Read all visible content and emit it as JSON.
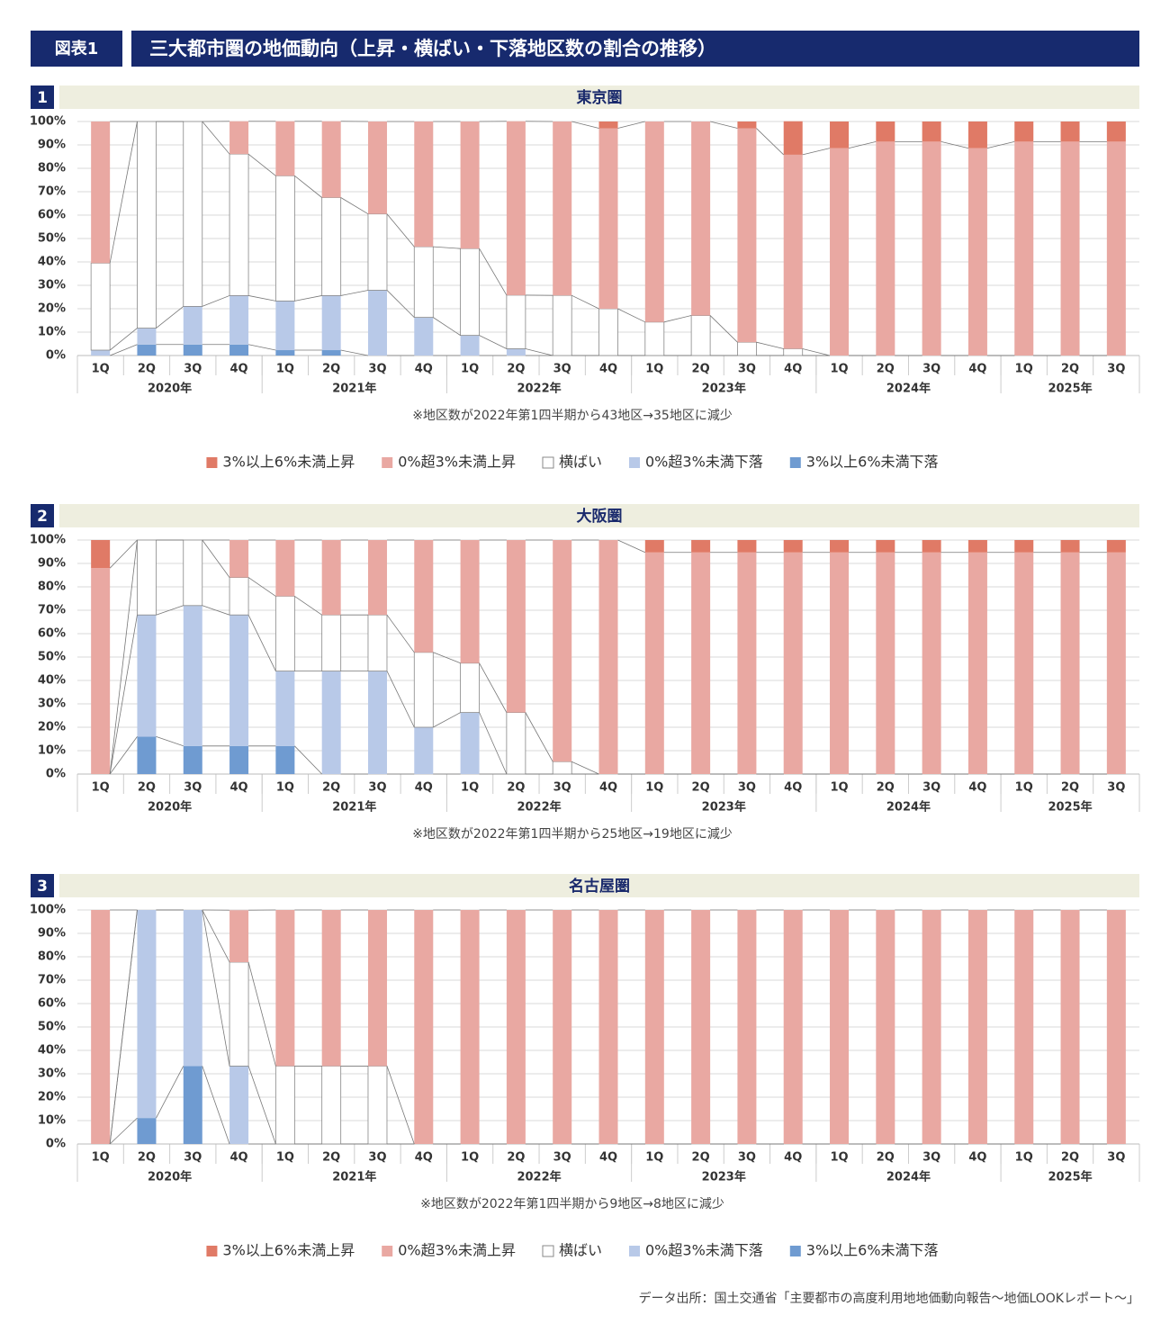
{
  "header": {
    "label": "図表1",
    "title": "三大都市圏の地価動向（上昇・横ばい・下落地区数の割合の推移）"
  },
  "source": "データ出所：国土交通省「主要都市の高度利用地地価動向報告～地価LOOKレポート～」",
  "chart_data": [
    {
      "type": "bar",
      "stacked": true,
      "number": "1",
      "title": "東京圏",
      "legend": true,
      "categories": [
        "1Q",
        "2Q",
        "3Q",
        "4Q",
        "1Q",
        "2Q",
        "3Q",
        "4Q",
        "1Q",
        "2Q",
        "3Q",
        "4Q",
        "1Q",
        "2Q",
        "3Q",
        "4Q",
        "1Q",
        "2Q",
        "3Q",
        "4Q",
        "1Q",
        "2Q",
        "3Q"
      ],
      "groups": [
        "2020年",
        "2021年",
        "2022年",
        "2023年",
        "2024年",
        "2025年"
      ],
      "note": "※地区数が2022年第1四半期から43地区→35地区に減少",
      "ylim": [
        0,
        100
      ],
      "yticks": [
        {
          "value": 0,
          "label": "0%"
        },
        {
          "value": 10,
          "label": "10%"
        },
        {
          "value": 20,
          "label": "20%"
        },
        {
          "value": 30,
          "label": "30%"
        },
        {
          "value": 40,
          "label": "40%"
        },
        {
          "value": 50,
          "label": "50%"
        },
        {
          "value": 60,
          "label": "60%"
        },
        {
          "value": 70,
          "label": "70%"
        },
        {
          "value": 80,
          "label": "80%"
        },
        {
          "value": 90,
          "label": "90%"
        },
        {
          "value": 100,
          "label": "100%"
        }
      ],
      "series": [
        {
          "name": "3%以上6%未満上昇",
          "color": "#e07a66",
          "values": [
            0,
            0,
            0,
            0,
            0,
            0,
            0,
            0,
            0,
            0,
            0,
            2.9,
            0,
            0,
            2.9,
            14.3,
            11.4,
            8.6,
            8.6,
            11.4,
            8.6,
            8.6,
            8.6
          ]
        },
        {
          "name": "0%超3%未満上昇",
          "color": "#e9a8a2",
          "values": [
            60.5,
            0,
            0,
            14,
            23.3,
            32.6,
            39.5,
            53.5,
            54.3,
            74.3,
            74.3,
            77.1,
            85.7,
            82.9,
            91.4,
            82.9,
            88.6,
            91.4,
            91.4,
            88.6,
            91.4,
            91.4,
            91.4
          ]
        },
        {
          "name": "横ばい",
          "color": "#ffffff",
          "values": [
            37.2,
            88.3,
            79,
            60.5,
            53.5,
            41.9,
            32.6,
            30.2,
            37.1,
            22.9,
            25.7,
            20,
            14.3,
            17.1,
            5.7,
            2.9,
            0,
            0,
            0,
            0,
            0,
            0,
            0
          ]
        },
        {
          "name": "0%超3%未満下落",
          "color": "#b8c9e8",
          "values": [
            2.3,
            7,
            16.3,
            20.9,
            21,
            23.3,
            27.9,
            16.3,
            8.6,
            2.9,
            0,
            0,
            0,
            0,
            0,
            0,
            0,
            0,
            0,
            0,
            0,
            0,
            0
          ]
        },
        {
          "name": "3%以上6%未満下落",
          "color": "#6f9bd1",
          "values": [
            0,
            4.7,
            4.7,
            4.7,
            2.3,
            2.3,
            0,
            0,
            0,
            0,
            0,
            0,
            0,
            0,
            0,
            0,
            0,
            0,
            0,
            0,
            0,
            0,
            0
          ]
        }
      ]
    },
    {
      "type": "bar",
      "stacked": true,
      "number": "2",
      "title": "大阪圏",
      "legend": false,
      "categories": [
        "1Q",
        "2Q",
        "3Q",
        "4Q",
        "1Q",
        "2Q",
        "3Q",
        "4Q",
        "1Q",
        "2Q",
        "3Q",
        "4Q",
        "1Q",
        "2Q",
        "3Q",
        "4Q",
        "1Q",
        "2Q",
        "3Q",
        "4Q",
        "1Q",
        "2Q",
        "3Q"
      ],
      "groups": [
        "2020年",
        "2021年",
        "2022年",
        "2023年",
        "2024年",
        "2025年"
      ],
      "note": "※地区数が2022年第1四半期から25地区→19地区に減少",
      "ylim": [
        0,
        100
      ],
      "yticks": [
        {
          "value": 0,
          "label": "0%"
        },
        {
          "value": 10,
          "label": "10%"
        },
        {
          "value": 20,
          "label": "20%"
        },
        {
          "value": 30,
          "label": "30%"
        },
        {
          "value": 40,
          "label": "40%"
        },
        {
          "value": 50,
          "label": "50%"
        },
        {
          "value": 60,
          "label": "60%"
        },
        {
          "value": 70,
          "label": "70%"
        },
        {
          "value": 80,
          "label": "80%"
        },
        {
          "value": 90,
          "label": "90%"
        },
        {
          "value": 100,
          "label": "100%"
        }
      ],
      "series": [
        {
          "name": "3%以上6%未満上昇",
          "color": "#e07a66",
          "values": [
            12,
            0,
            0,
            0,
            0,
            0,
            0,
            0,
            0,
            0,
            0,
            0,
            5.3,
            5.3,
            5.3,
            5.3,
            5.3,
            5.3,
            5.3,
            5.3,
            5.3,
            5.3,
            5.3
          ]
        },
        {
          "name": "0%超3%未満上昇",
          "color": "#e9a8a2",
          "values": [
            88,
            0,
            0,
            16,
            24,
            32,
            32,
            48,
            52.6,
            73.7,
            94.7,
            100,
            94.7,
            94.7,
            94.7,
            94.7,
            94.7,
            94.7,
            94.7,
            94.7,
            94.7,
            94.7,
            94.7
          ]
        },
        {
          "name": "横ばい",
          "color": "#ffffff",
          "values": [
            0,
            32,
            28,
            16,
            32,
            24,
            24,
            32,
            21.1,
            26.3,
            5.3,
            0,
            0,
            0,
            0,
            0,
            0,
            0,
            0,
            0,
            0,
            0,
            0
          ]
        },
        {
          "name": "0%超3%未満下落",
          "color": "#b8c9e8",
          "values": [
            0,
            52,
            60,
            56,
            32,
            44,
            44,
            20,
            26.3,
            0,
            0,
            0,
            0,
            0,
            0,
            0,
            0,
            0,
            0,
            0,
            0,
            0,
            0
          ]
        },
        {
          "name": "3%以上6%未満下落",
          "color": "#6f9bd1",
          "values": [
            0,
            16,
            12,
            12,
            12,
            0,
            0,
            0,
            0,
            0,
            0,
            0,
            0,
            0,
            0,
            0,
            0,
            0,
            0,
            0,
            0,
            0,
            0
          ]
        }
      ]
    },
    {
      "type": "bar",
      "stacked": true,
      "number": "3",
      "title": "名古屋圏",
      "legend": true,
      "categories": [
        "1Q",
        "2Q",
        "3Q",
        "4Q",
        "1Q",
        "2Q",
        "3Q",
        "4Q",
        "1Q",
        "2Q",
        "3Q",
        "4Q",
        "1Q",
        "2Q",
        "3Q",
        "4Q",
        "1Q",
        "2Q",
        "3Q",
        "4Q",
        "1Q",
        "2Q",
        "3Q"
      ],
      "groups": [
        "2020年",
        "2021年",
        "2022年",
        "2023年",
        "2024年",
        "2025年"
      ],
      "note": "※地区数が2022年第1四半期から9地区→8地区に減少",
      "ylim": [
        0,
        100
      ],
      "yticks": [
        {
          "value": 0,
          "label": "0%"
        },
        {
          "value": 10,
          "label": "10%"
        },
        {
          "value": 20,
          "label": "20%"
        },
        {
          "value": 30,
          "label": "30%"
        },
        {
          "value": 40,
          "label": "40%"
        },
        {
          "value": 50,
          "label": "50%"
        },
        {
          "value": 60,
          "label": "60%"
        },
        {
          "value": 70,
          "label": "70%"
        },
        {
          "value": 80,
          "label": "80%"
        },
        {
          "value": 90,
          "label": "90%"
        },
        {
          "value": 100,
          "label": "100%"
        }
      ],
      "series": [
        {
          "name": "3%以上6%未満上昇",
          "color": "#e07a66",
          "values": [
            0,
            0,
            0,
            0,
            0,
            0,
            0,
            0,
            0,
            0,
            0,
            0,
            0,
            0,
            0,
            0,
            0,
            0,
            0,
            0,
            0,
            0,
            0
          ]
        },
        {
          "name": "0%超3%未満上昇",
          "color": "#e9a8a2",
          "values": [
            100,
            0,
            0,
            22.2,
            66.7,
            66.7,
            66.7,
            100,
            100,
            100,
            100,
            100,
            100,
            100,
            100,
            100,
            100,
            100,
            100,
            100,
            100,
            100,
            100
          ]
        },
        {
          "name": "横ばい",
          "color": "#ffffff",
          "values": [
            0,
            0,
            0,
            44.4,
            33.3,
            33.3,
            33.3,
            0,
            0,
            0,
            0,
            0,
            0,
            0,
            0,
            0,
            0,
            0,
            0,
            0,
            0,
            0,
            0
          ]
        },
        {
          "name": "0%超3%未満下落",
          "color": "#b8c9e8",
          "values": [
            0,
            88.9,
            66.7,
            33.3,
            0,
            0,
            0,
            0,
            0,
            0,
            0,
            0,
            0,
            0,
            0,
            0,
            0,
            0,
            0,
            0,
            0,
            0,
            0
          ]
        },
        {
          "name": "3%以上6%未満下落",
          "color": "#6f9bd1",
          "values": [
            0,
            11.1,
            33.3,
            0,
            0,
            0,
            0,
            0,
            0,
            0,
            0,
            0,
            0,
            0,
            0,
            0,
            0,
            0,
            0,
            0,
            0,
            0,
            0
          ]
        }
      ]
    }
  ]
}
